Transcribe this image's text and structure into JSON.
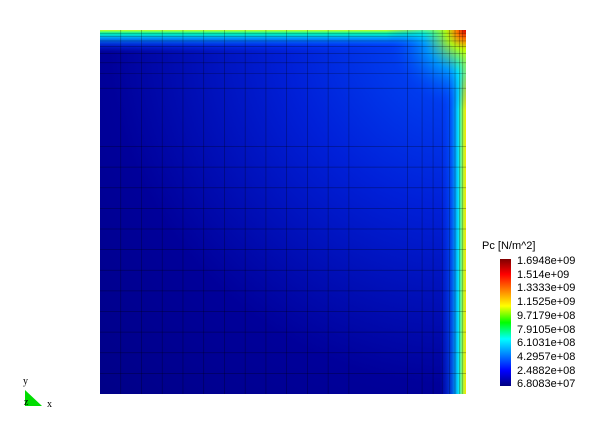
{
  "chart_data": {
    "type": "heatmap",
    "title": "",
    "colorbar": {
      "title": "Pc [N/m^2]",
      "ticks": [
        "1.6948e+09",
        "1.514e+09",
        "1.3333e+09",
        "1.1525e+09",
        "9.7179e+08",
        "7.9105e+08",
        "6.1031e+08",
        "4.2957e+08",
        "2.4882e+08",
        "6.8083e+07"
      ],
      "min": 68083000.0,
      "max": 1694800000.0,
      "colormap": [
        "#00007f",
        "#0000ff",
        "#00ffff",
        "#00ff00",
        "#ffff00",
        "#ff0000",
        "#7f0000"
      ]
    },
    "field_description_colors": {
      "interior": "#00008c",
      "mid": "#0040f0",
      "edge_high": "#c8ff00",
      "corner_max": "#d00000"
    }
  },
  "triad": {
    "x": "x",
    "y": "y",
    "z": "z"
  }
}
